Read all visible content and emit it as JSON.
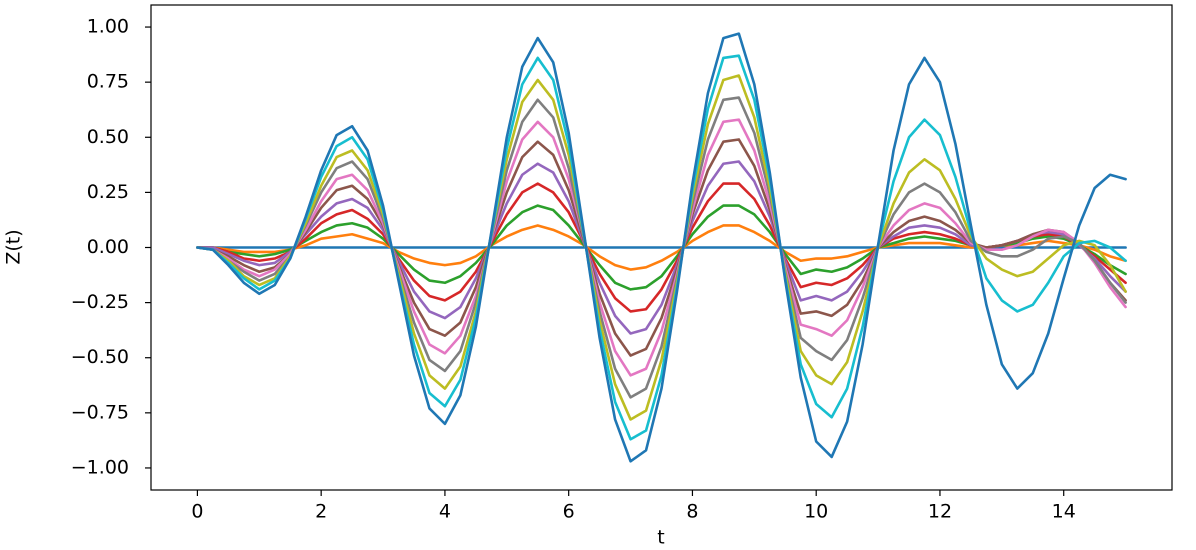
{
  "chart_data": {
    "type": "line",
    "x_label": "t",
    "y_label": "Z(t)",
    "x": [
      0,
      0.25,
      0.5,
      0.75,
      1,
      1.25,
      1.5,
      1.75,
      2,
      2.25,
      2.5,
      2.75,
      3,
      3.25,
      3.5,
      3.75,
      4,
      4.25,
      4.5,
      4.75,
      5,
      5.25,
      5.5,
      5.75,
      6,
      6.25,
      6.5,
      6.75,
      7,
      7.25,
      7.5,
      7.75,
      8,
      8.25,
      8.5,
      8.75,
      9,
      9.25,
      9.5,
      9.75,
      10,
      10.25,
      10.5,
      10.75,
      11,
      11.25,
      11.5,
      11.75,
      12,
      12.25,
      12.5,
      12.75,
      13,
      13.25,
      13.5,
      13.75,
      14,
      14.25,
      14.5,
      14.75,
      15
    ],
    "xlim": [
      -0.75,
      15.75
    ],
    "xticks": [
      0,
      2,
      4,
      6,
      8,
      10,
      12,
      14
    ],
    "ylim": [
      -1.1,
      1.1
    ],
    "yticks": [
      {
        "value": -1,
        "label": "−1.00"
      },
      {
        "value": -0.75,
        "label": "−0.75"
      },
      {
        "value": -0.5,
        "label": "−0.50"
      },
      {
        "value": -0.25,
        "label": "−0.25"
      },
      {
        "value": 0,
        "label": "0.00"
      },
      {
        "value": 0.25,
        "label": "0.25"
      },
      {
        "value": 0.5,
        "label": "0.50"
      },
      {
        "value": 0.75,
        "label": "0.75"
      },
      {
        "value": 1,
        "label": "1.00"
      }
    ],
    "grid": false,
    "series": [
      {
        "color": "#1f77b4",
        "values": [
          0,
          0,
          0,
          0,
          0,
          0,
          0,
          0,
          0,
          0,
          0,
          0,
          0,
          0,
          0,
          0,
          0,
          0,
          0,
          0,
          0,
          0,
          0,
          0,
          0,
          0,
          0,
          0,
          0,
          0,
          0,
          0,
          0,
          0,
          0,
          0,
          0,
          0,
          0,
          0,
          0,
          0,
          0,
          0,
          0,
          0,
          0,
          0,
          0,
          0,
          0,
          0,
          0,
          0,
          0,
          0,
          0,
          0,
          0,
          0,
          0
        ]
      },
      {
        "color": "#ff7f0e",
        "values": [
          0,
          0,
          -0.01,
          -0.02,
          -0.02,
          -0.02,
          -0.01,
          0.01,
          0.04,
          0.05,
          0.06,
          0.04,
          0.02,
          -0.02,
          -0.05,
          -0.07,
          -0.08,
          -0.07,
          -0.04,
          0.01,
          0.05,
          0.08,
          0.1,
          0.08,
          0.05,
          0.01,
          -0.04,
          -0.08,
          -0.1,
          -0.09,
          -0.06,
          -0.02,
          0.03,
          0.07,
          0.1,
          0.1,
          0.07,
          0.03,
          -0.02,
          -0.06,
          -0.05,
          -0.05,
          -0.04,
          -0.02,
          0,
          0.01,
          0.02,
          0.02,
          0.02,
          0.01,
          0,
          0,
          0.01,
          0.01,
          0.02,
          0.03,
          0.02,
          0.01,
          -0.01,
          -0.04,
          -0.06
        ]
      },
      {
        "color": "#2ca02c",
        "values": [
          0,
          0,
          -0.02,
          -0.03,
          -0.04,
          -0.03,
          -0.01,
          0.03,
          0.07,
          0.1,
          0.11,
          0.09,
          0.04,
          -0.03,
          -0.1,
          -0.15,
          -0.16,
          -0.13,
          -0.07,
          0.01,
          0.1,
          0.16,
          0.19,
          0.17,
          0.1,
          0.01,
          -0.08,
          -0.16,
          -0.19,
          -0.18,
          -0.13,
          -0.04,
          0.06,
          0.14,
          0.19,
          0.19,
          0.15,
          0.07,
          -0.03,
          -0.12,
          -0.1,
          -0.11,
          -0.09,
          -0.05,
          0,
          0.02,
          0.04,
          0.05,
          0.04,
          0.03,
          0.01,
          0,
          0.01,
          0.02,
          0.04,
          0.05,
          0.04,
          0.01,
          -0.03,
          -0.08,
          -0.12
        ]
      },
      {
        "color": "#d62728",
        "values": [
          0,
          0,
          -0.02,
          -0.05,
          -0.06,
          -0.05,
          -0.02,
          0.04,
          0.11,
          0.15,
          0.17,
          0.13,
          0.06,
          -0.05,
          -0.15,
          -0.22,
          -0.24,
          -0.2,
          -0.11,
          0.02,
          0.15,
          0.25,
          0.29,
          0.25,
          0.16,
          0.02,
          -0.12,
          -0.23,
          -0.29,
          -0.28,
          -0.19,
          -0.06,
          0.09,
          0.21,
          0.29,
          0.29,
          0.22,
          0.1,
          -0.05,
          -0.18,
          -0.16,
          -0.17,
          -0.14,
          -0.08,
          0,
          0.04,
          0.06,
          0.07,
          0.06,
          0.04,
          0.01,
          0,
          0.01,
          0.03,
          0.05,
          0.06,
          0.05,
          0.01,
          -0.04,
          -0.1,
          -0.16
        ]
      },
      {
        "color": "#9467bd",
        "values": [
          0,
          0,
          -0.03,
          -0.06,
          -0.08,
          -0.07,
          -0.02,
          0.06,
          0.14,
          0.2,
          0.22,
          0.18,
          0.08,
          -0.06,
          -0.2,
          -0.29,
          -0.32,
          -0.27,
          -0.14,
          0.03,
          0.2,
          0.33,
          0.38,
          0.34,
          0.21,
          0.02,
          -0.16,
          -0.31,
          -0.39,
          -0.37,
          -0.26,
          -0.08,
          0.12,
          0.28,
          0.38,
          0.39,
          0.3,
          0.14,
          -0.06,
          -0.24,
          -0.22,
          -0.24,
          -0.2,
          -0.11,
          0,
          0.05,
          0.09,
          0.1,
          0.09,
          0.06,
          0.01,
          0,
          0.01,
          0.03,
          0.06,
          0.07,
          0.06,
          0.01,
          -0.05,
          -0.13,
          -0.2
        ]
      },
      {
        "color": "#8c564b",
        "values": [
          0,
          -0.01,
          -0.04,
          -0.08,
          -0.11,
          -0.09,
          -0.03,
          0.07,
          0.18,
          0.26,
          0.28,
          0.22,
          0.1,
          -0.08,
          -0.25,
          -0.37,
          -0.4,
          -0.34,
          -0.18,
          0.04,
          0.25,
          0.41,
          0.48,
          0.42,
          0.26,
          0.03,
          -0.21,
          -0.39,
          -0.49,
          -0.46,
          -0.32,
          -0.1,
          0.15,
          0.35,
          0.48,
          0.49,
          0.37,
          0.17,
          -0.08,
          -0.3,
          -0.29,
          -0.31,
          -0.26,
          -0.15,
          0,
          0.07,
          0.12,
          0.14,
          0.12,
          0.08,
          0.02,
          0,
          0.01,
          0.03,
          0.06,
          0.08,
          0.07,
          0.02,
          -0.06,
          -0.16,
          -0.24
        ]
      },
      {
        "color": "#e377c2",
        "values": [
          0,
          -0.01,
          -0.05,
          -0.1,
          -0.13,
          -0.1,
          -0.03,
          0.08,
          0.21,
          0.31,
          0.33,
          0.26,
          0.11,
          -0.09,
          -0.29,
          -0.44,
          -0.48,
          -0.4,
          -0.22,
          0.04,
          0.3,
          0.49,
          0.57,
          0.5,
          0.31,
          0.04,
          -0.25,
          -0.47,
          -0.58,
          -0.55,
          -0.38,
          -0.12,
          0.17,
          0.42,
          0.57,
          0.58,
          0.44,
          0.2,
          -0.09,
          -0.35,
          -0.37,
          -0.4,
          -0.33,
          -0.18,
          0,
          0.1,
          0.17,
          0.2,
          0.18,
          0.11,
          0.02,
          -0.01,
          -0.01,
          0.01,
          0.05,
          0.08,
          0.07,
          0.02,
          -0.07,
          -0.18,
          -0.27
        ]
      },
      {
        "color": "#7f7f7f",
        "values": [
          0,
          -0.01,
          -0.06,
          -0.11,
          -0.15,
          -0.12,
          -0.04,
          0.1,
          0.25,
          0.36,
          0.39,
          0.31,
          0.13,
          -0.11,
          -0.34,
          -0.51,
          -0.56,
          -0.47,
          -0.25,
          0.05,
          0.35,
          0.57,
          0.67,
          0.59,
          0.36,
          0.04,
          -0.29,
          -0.55,
          -0.68,
          -0.64,
          -0.45,
          -0.14,
          0.2,
          0.49,
          0.67,
          0.68,
          0.52,
          0.24,
          -0.11,
          -0.41,
          -0.47,
          -0.51,
          -0.42,
          -0.23,
          0,
          0.15,
          0.25,
          0.29,
          0.25,
          0.16,
          0.03,
          -0.02,
          -0.04,
          -0.04,
          -0.01,
          0.04,
          0.05,
          0.02,
          -0.06,
          -0.16,
          -0.25
        ]
      },
      {
        "color": "#bcbd22",
        "values": [
          0,
          -0.01,
          -0.06,
          -0.13,
          -0.17,
          -0.14,
          -0.04,
          0.11,
          0.28,
          0.41,
          0.44,
          0.35,
          0.15,
          -0.12,
          -0.39,
          -0.58,
          -0.64,
          -0.54,
          -0.29,
          0.06,
          0.4,
          0.66,
          0.76,
          0.67,
          0.42,
          0.05,
          -0.33,
          -0.62,
          -0.78,
          -0.74,
          -0.51,
          -0.16,
          0.23,
          0.56,
          0.76,
          0.78,
          0.59,
          0.27,
          -0.12,
          -0.47,
          -0.58,
          -0.62,
          -0.52,
          -0.29,
          0,
          0.2,
          0.34,
          0.4,
          0.35,
          0.22,
          0.05,
          -0.05,
          -0.1,
          -0.13,
          -0.11,
          -0.05,
          0.01,
          0.03,
          0.01,
          -0.08,
          -0.2
        ]
      },
      {
        "color": "#17becf",
        "values": [
          0,
          -0.01,
          -0.07,
          -0.14,
          -0.19,
          -0.15,
          -0.05,
          0.13,
          0.32,
          0.46,
          0.5,
          0.4,
          0.17,
          -0.14,
          -0.44,
          -0.66,
          -0.72,
          -0.6,
          -0.32,
          0.06,
          0.45,
          0.74,
          0.86,
          0.76,
          0.47,
          0.05,
          -0.37,
          -0.7,
          -0.87,
          -0.83,
          -0.58,
          -0.18,
          0.26,
          0.63,
          0.86,
          0.87,
          0.67,
          0.31,
          -0.14,
          -0.53,
          -0.71,
          -0.77,
          -0.64,
          -0.36,
          0.01,
          0.3,
          0.5,
          0.58,
          0.51,
          0.32,
          0.07,
          -0.14,
          -0.24,
          -0.29,
          -0.26,
          -0.16,
          -0.04,
          0.02,
          0.03,
          0,
          -0.06
        ]
      },
      {
        "color": "#1f77b4",
        "values": [
          0,
          -0.01,
          -0.08,
          -0.16,
          -0.21,
          -0.17,
          -0.05,
          0.14,
          0.35,
          0.51,
          0.55,
          0.44,
          0.19,
          -0.15,
          -0.49,
          -0.73,
          -0.8,
          -0.67,
          -0.36,
          0.07,
          0.5,
          0.82,
          0.95,
          0.84,
          0.52,
          0.06,
          -0.41,
          -0.78,
          -0.97,
          -0.92,
          -0.64,
          -0.2,
          0.29,
          0.7,
          0.95,
          0.97,
          0.74,
          0.34,
          -0.15,
          -0.59,
          -0.88,
          -0.95,
          -0.79,
          -0.44,
          0.01,
          0.44,
          0.74,
          0.86,
          0.75,
          0.47,
          0.1,
          -0.26,
          -0.53,
          -0.64,
          -0.57,
          -0.39,
          -0.14,
          0.1,
          0.27,
          0.33,
          0.31
        ]
      }
    ]
  }
}
